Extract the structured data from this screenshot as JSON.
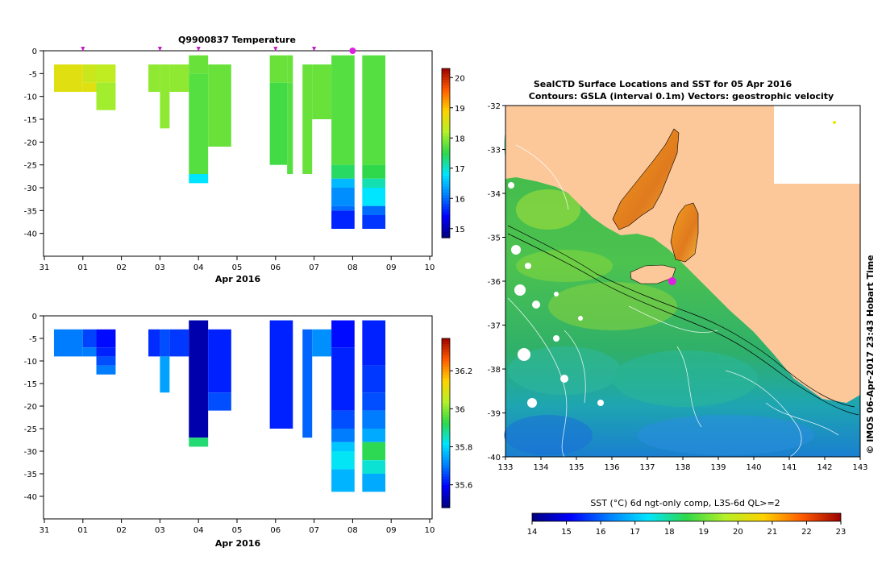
{
  "chart_data": [
    {
      "type": "heatmap",
      "title": "Q9900837  Temperature",
      "xlabel": "Apr 2016",
      "x_ticks": [
        "31",
        "01",
        "02",
        "03",
        "04",
        "05",
        "06",
        "07",
        "08",
        "09",
        "10"
      ],
      "y_ticks": [
        "0",
        "-5",
        "-10",
        "-15",
        "-20",
        "-25",
        "-30",
        "-35",
        "-40"
      ],
      "ylim": [
        -45,
        0
      ],
      "colorbar": {
        "ticks": [
          "15",
          "16",
          "17",
          "18",
          "19",
          "20"
        ],
        "range": [
          14.7,
          20.3
        ]
      },
      "markers": [
        {
          "day": 1.0,
          "label": "▾"
        },
        {
          "day": 3.0,
          "label": "▾"
        },
        {
          "day": 4.0,
          "label": "▾"
        },
        {
          "day": 6.0,
          "label": "▾"
        },
        {
          "day": 7.0,
          "label": "▾"
        },
        {
          "day": 8.0,
          "label": "●"
        }
      ],
      "profiles": [
        {
          "start": 0.25,
          "end": 1.0,
          "cells": [
            [
              -3,
              -9,
              18.6
            ]
          ]
        },
        {
          "start": 1.0,
          "end": 1.35,
          "cells": [
            [
              -3,
              -7,
              18.4
            ],
            [
              -7,
              -9,
              18.6
            ]
          ]
        },
        {
          "start": 1.35,
          "end": 1.85,
          "cells": [
            [
              -3,
              -7,
              18.3
            ],
            [
              -7,
              -13,
              18.1
            ]
          ]
        },
        {
          "start": 2.7,
          "end": 3.0,
          "cells": [
            [
              -3,
              -9,
              18.0
            ]
          ]
        },
        {
          "start": 3.0,
          "end": 3.25,
          "cells": [
            [
              -3,
              -9,
              18.0
            ],
            [
              -9,
              -17,
              18.0
            ]
          ]
        },
        {
          "start": 3.25,
          "end": 3.75,
          "cells": [
            [
              -3,
              -9,
              18.0
            ]
          ]
        },
        {
          "start": 3.75,
          "end": 4.25,
          "cells": [
            [
              -1,
              -5,
              17.8
            ],
            [
              -5,
              -27,
              17.7
            ],
            [
              -27,
              -29,
              16.8
            ]
          ]
        },
        {
          "start": 4.25,
          "end": 4.85,
          "cells": [
            [
              -3,
              -21,
              17.8
            ]
          ]
        },
        {
          "start": 5.85,
          "end": 6.3,
          "cells": [
            [
              -1,
              -7,
              17.8
            ],
            [
              -7,
              -25,
              17.6
            ]
          ]
        },
        {
          "start": 6.3,
          "end": 6.45,
          "cells": [
            [
              -1,
              -7,
              17.8
            ],
            [
              -7,
              -27,
              17.7
            ]
          ]
        },
        {
          "start": 6.7,
          "end": 6.95,
          "cells": [
            [
              -3,
              -27,
              17.8
            ]
          ]
        },
        {
          "start": 6.95,
          "end": 7.45,
          "cells": [
            [
              -3,
              -15,
              17.8
            ]
          ]
        },
        {
          "start": 7.45,
          "end": 8.05,
          "cells": [
            [
              -1,
              -25,
              17.7
            ],
            [
              -25,
              -28,
              17.4
            ],
            [
              -28,
              -30,
              16.5
            ],
            [
              -30,
              -34,
              16.2
            ],
            [
              -34,
              -35,
              16.0
            ],
            [
              -35,
              -39,
              15.6
            ]
          ]
        },
        {
          "start": 8.25,
          "end": 8.85,
          "cells": [
            [
              -1,
              -25,
              17.7
            ],
            [
              -25,
              -28,
              17.5
            ],
            [
              -28,
              -30,
              17.1
            ],
            [
              -30,
              -34,
              16.8
            ],
            [
              -34,
              -36,
              16.0
            ],
            [
              -36,
              -39,
              15.7
            ]
          ]
        }
      ]
    },
    {
      "type": "heatmap",
      "title": "",
      "xlabel": "Apr 2016",
      "x_ticks": [
        "31",
        "01",
        "02",
        "03",
        "04",
        "05",
        "06",
        "07",
        "08",
        "09",
        "10"
      ],
      "y_ticks": [
        "0",
        "-5",
        "-10",
        "-15",
        "-20",
        "-25",
        "-30",
        "-35",
        "-40"
      ],
      "ylim": [
        -45,
        0
      ],
      "colorbar": {
        "ticks": [
          "35.6",
          "35.8",
          "36",
          "36.2"
        ],
        "range": [
          35.48,
          36.37
        ]
      },
      "profiles": [
        {
          "start": 0.25,
          "end": 1.0,
          "cells": [
            [
              -3,
              -9,
              35.7
            ]
          ]
        },
        {
          "start": 1.0,
          "end": 1.35,
          "cells": [
            [
              -3,
              -7,
              35.65
            ],
            [
              -7,
              -9,
              35.7
            ]
          ]
        },
        {
          "start": 1.35,
          "end": 1.85,
          "cells": [
            [
              -3,
              -7,
              35.6
            ],
            [
              -7,
              -9,
              35.62
            ],
            [
              -9,
              -11,
              35.66
            ],
            [
              -11,
              -13,
              35.7
            ]
          ]
        },
        {
          "start": 2.7,
          "end": 3.0,
          "cells": [
            [
              -3,
              -9,
              35.63
            ]
          ]
        },
        {
          "start": 3.0,
          "end": 3.25,
          "cells": [
            [
              -3,
              -9,
              35.66
            ],
            [
              -9,
              -17,
              35.74
            ]
          ]
        },
        {
          "start": 3.25,
          "end": 3.75,
          "cells": [
            [
              -3,
              -9,
              35.64
            ]
          ]
        },
        {
          "start": 3.75,
          "end": 4.25,
          "cells": [
            [
              -1,
              -27,
              35.52
            ],
            [
              -27,
              -29,
              35.9
            ]
          ]
        },
        {
          "start": 4.25,
          "end": 4.85,
          "cells": [
            [
              -3,
              -17,
              35.62
            ],
            [
              -17,
              -21,
              35.66
            ]
          ]
        },
        {
          "start": 5.85,
          "end": 6.45,
          "cells": [
            [
              -1,
              -25,
              35.62
            ]
          ]
        },
        {
          "start": 6.7,
          "end": 6.95,
          "cells": [
            [
              -3,
              -27,
              35.68
            ]
          ]
        },
        {
          "start": 6.95,
          "end": 7.45,
          "cells": [
            [
              -3,
              -9,
              35.72
            ]
          ]
        },
        {
          "start": 7.45,
          "end": 8.05,
          "cells": [
            [
              -1,
              -7,
              35.6
            ],
            [
              -7,
              -21,
              35.62
            ],
            [
              -21,
              -25,
              35.66
            ],
            [
              -25,
              -28,
              35.7
            ],
            [
              -28,
              -30,
              35.78
            ],
            [
              -30,
              -34,
              35.82
            ],
            [
              -34,
              -39,
              35.76
            ]
          ]
        },
        {
          "start": 8.25,
          "end": 8.85,
          "cells": [
            [
              -1,
              -11,
              35.62
            ],
            [
              -11,
              -17,
              35.64
            ],
            [
              -17,
              -21,
              35.66
            ],
            [
              -21,
              -25,
              35.7
            ],
            [
              -25,
              -28,
              35.75
            ],
            [
              -28,
              -32,
              35.92
            ],
            [
              -32,
              -35,
              35.84
            ],
            [
              -35,
              -39,
              35.75
            ]
          ]
        }
      ]
    },
    {
      "type": "heatmap",
      "title": "SealCTD Surface Locations and SST for 05 Apr 2016",
      "subtitle": "Contours: GSLA (interval 0.1m) Vectors: geostrophic velocity",
      "x_ticks": [
        "133",
        "134",
        "135",
        "136",
        "137",
        "138",
        "139",
        "140",
        "141",
        "142",
        "143"
      ],
      "y_ticks": [
        "-32",
        "-33",
        "-34",
        "-35",
        "-36",
        "-37",
        "-38",
        "-39",
        "-40"
      ],
      "xlim": [
        133,
        143
      ],
      "ylim": [
        -40,
        -32
      ],
      "colorbar": {
        "label": "SST (°C) 6d ngt-only comp, L3S-6d QL>=2",
        "ticks": [
          "14",
          "15",
          "16",
          "17",
          "18",
          "19",
          "20",
          "21",
          "22",
          "23"
        ],
        "range": [
          14,
          23
        ]
      },
      "side_label": "© IMOS 06-Apr-2017 23:43 Hobart Time",
      "seal_location": {
        "lon": 137.7,
        "lat": -36.0
      }
    }
  ]
}
